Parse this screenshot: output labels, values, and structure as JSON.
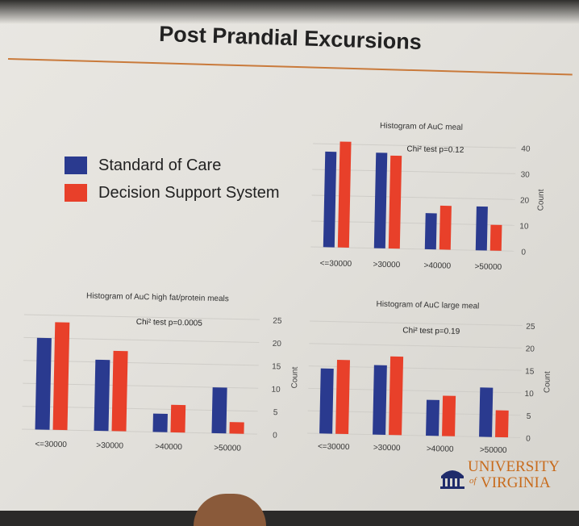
{
  "slide": {
    "title": "Post Prandial Excursions"
  },
  "legend": [
    {
      "label": "Standard of Care",
      "color": "#2a3a8f"
    },
    {
      "label": "Decision Support System",
      "color": "#e8402a"
    }
  ],
  "logo": {
    "line1": "UNIVERSITY",
    "of": "of",
    "line2": "VIRGINIA"
  },
  "chart_data": [
    {
      "id": "auc-meal",
      "type": "bar",
      "title": "Histogram of AuC meal",
      "annotation": "Chi² test p=0.12",
      "ylabel": "Count",
      "categories": [
        "<=30000",
        ">30000",
        ">40000",
        ">50000"
      ],
      "series": [
        {
          "values": [
            37,
            37,
            14,
            17
          ]
        },
        {
          "values": [
            41,
            36,
            17,
            10
          ]
        }
      ],
      "ylim": [
        0,
        40
      ],
      "yticks": [
        0,
        10,
        20,
        30,
        40
      ]
    },
    {
      "id": "auc-high-fat",
      "type": "bar",
      "title": "Histogram of AuC high fat/protein meals",
      "annotation": "Chi² test p=0.0005",
      "ylabel": "Count",
      "categories": [
        "<=30000",
        ">30000",
        ">40000",
        ">50000"
      ],
      "series": [
        {
          "values": [
            20,
            15.5,
            4,
            10
          ]
        },
        {
          "values": [
            23.5,
            17.5,
            6,
            2.5
          ]
        }
      ],
      "ylim": [
        0,
        25
      ],
      "yticks": [
        0,
        5,
        10,
        15,
        20,
        25
      ]
    },
    {
      "id": "auc-large",
      "type": "bar",
      "title": "Histogram of AuC large meal",
      "annotation": "Chi² test p=0.19",
      "ylabel": "Count",
      "categories": [
        "<=30000",
        ">30000",
        ">40000",
        ">50000"
      ],
      "series": [
        {
          "values": [
            14.5,
            15.5,
            8,
            11
          ]
        },
        {
          "values": [
            16.5,
            17.5,
            9,
            6
          ]
        }
      ],
      "ylim": [
        0,
        25
      ],
      "yticks": [
        0,
        5,
        10,
        15,
        20,
        25
      ]
    }
  ]
}
